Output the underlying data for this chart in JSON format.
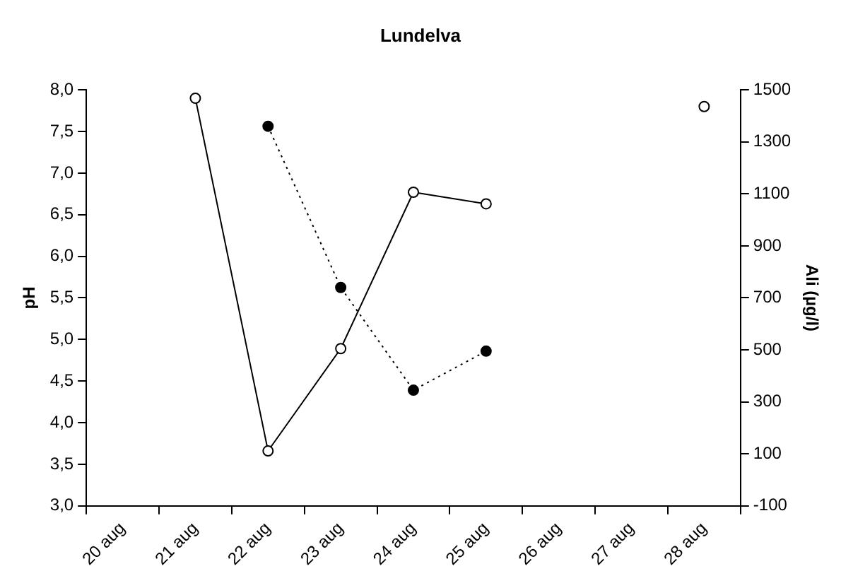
{
  "chart_data": {
    "type": "line",
    "title": "Lundelva",
    "ylabel": "pH",
    "y2label": "Ali (µg/l)",
    "categories": [
      "20 aug",
      "21 aug",
      "22 aug",
      "23 aug",
      "24 aug",
      "25 aug",
      "26 aug",
      "27 aug",
      "28 aug"
    ],
    "series": [
      {
        "color": "#000000",
        "line_style": "solid",
        "marker": "circle",
        "values": [
          null,
          7.9,
          3.66,
          4.89,
          6.77,
          6.63,
          null,
          null,
          7.8
        ]
      },
      {
        "color": "#000000",
        "line_style": "dotted",
        "marker": "circle",
        "axis": "y2",
        "values": [
          null,
          null,
          1360,
          740,
          345,
          495,
          null,
          null,
          null
        ]
      }
    ],
    "ylim": [
      3,
      8
    ],
    "yticks": [
      {
        "value": 3,
        "label": "3,0"
      },
      {
        "value": 3.5,
        "label": "3,5"
      },
      {
        "value": 4,
        "label": "4,0"
      },
      {
        "value": 4.5,
        "label": "4,5"
      },
      {
        "value": 5,
        "label": "5,0"
      },
      {
        "value": 5.5,
        "label": "5,5"
      },
      {
        "value": 6,
        "label": "6,0"
      },
      {
        "value": 6.5,
        "label": "6,5"
      },
      {
        "value": 7,
        "label": "7,0"
      },
      {
        "value": 7.5,
        "label": "7,5"
      },
      {
        "value": 8,
        "label": "8,0"
      }
    ],
    "y2lim": [
      -100,
      1500
    ],
    "y2ticks": [
      -100,
      100,
      300,
      500,
      700,
      900,
      1100,
      1300,
      1500
    ],
    "grid": false,
    "legend": false
  }
}
